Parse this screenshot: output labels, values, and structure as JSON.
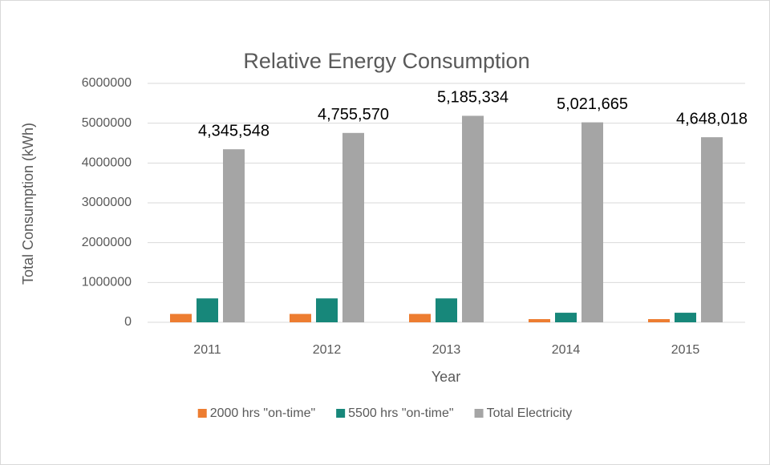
{
  "chart_data": {
    "type": "bar",
    "title": "Relative Energy Consumption",
    "x_label": "Year",
    "y_label": "Total Consumption (kWh)",
    "categories": [
      "2011",
      "2012",
      "2013",
      "2014",
      "2015"
    ],
    "series": [
      {
        "name": "2000 hrs \"on-time\"",
        "color": "#ed7d31",
        "values": [
          210000,
          210000,
          210000,
          80000,
          80000
        ]
      },
      {
        "name": "5500 hrs \"on-time\"",
        "color": "#17877a",
        "values": [
          600000,
          600000,
          600000,
          240000,
          240000
        ]
      },
      {
        "name": "Total Electricity",
        "color": "#a5a5a5",
        "values": [
          4345548,
          4755570,
          5185334,
          5021665,
          4648018
        ],
        "value_labels": [
          "4,345,548",
          "4,755,570",
          "5,185,334",
          "5,021,665",
          "4,648,018"
        ]
      }
    ],
    "ylim": [
      0,
      6000000
    ],
    "yticks": [
      0,
      1000000,
      2000000,
      3000000,
      4000000,
      5000000,
      6000000
    ],
    "grid": true,
    "legend": "bottom"
  }
}
